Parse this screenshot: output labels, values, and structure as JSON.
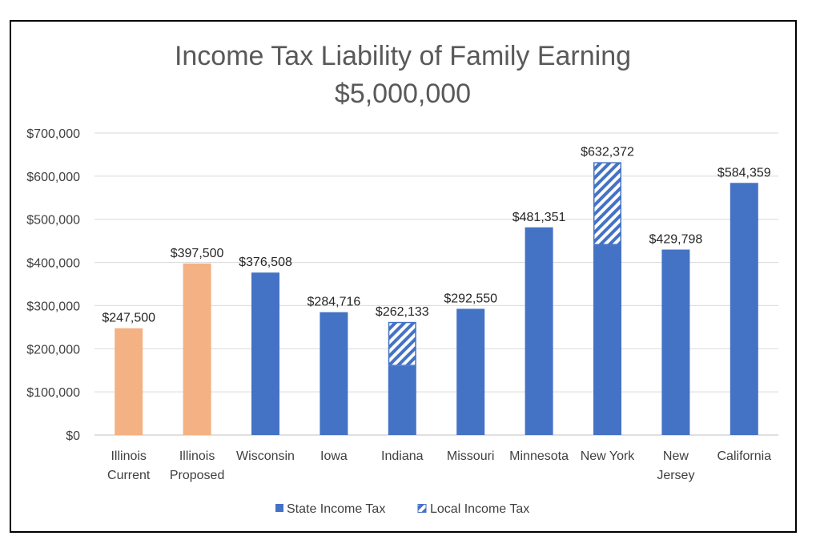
{
  "chart_data": {
    "type": "bar",
    "title_lines": [
      "Income Tax Liability of Family Earning",
      "$5,000,000"
    ],
    "categories": [
      [
        "Illinois",
        "Current"
      ],
      [
        "Illinois",
        "Proposed"
      ],
      [
        "Wisconsin"
      ],
      [
        "Iowa"
      ],
      [
        "Indiana"
      ],
      [
        "Missouri"
      ],
      [
        "Minnesota"
      ],
      [
        "New York"
      ],
      [
        "New",
        "Jersey"
      ],
      [
        "California"
      ]
    ],
    "series": [
      {
        "name": "State Income Tax",
        "values": [
          247500,
          397500,
          376508,
          284716,
          160000,
          292550,
          481351,
          440000,
          429798,
          584359
        ]
      },
      {
        "name": "Local Income Tax",
        "values": [
          0,
          0,
          0,
          0,
          102133,
          0,
          0,
          192372,
          0,
          0
        ]
      }
    ],
    "totals_labels": [
      "$247,500",
      "$397,500",
      "$376,508",
      "$284,716",
      "$262,133",
      "$292,550",
      "$481,351",
      "$632,372",
      "$429,798",
      "$584,359"
    ],
    "highlight_categories": [
      0,
      1
    ],
    "colors": {
      "state": "#4472c4",
      "illinois": "#f4b183",
      "local_hatch": "#4472c4",
      "grid": "#d9d9d9"
    },
    "ylim": [
      0,
      700000
    ],
    "yticks": [
      0,
      100000,
      200000,
      300000,
      400000,
      500000,
      600000,
      700000
    ],
    "ytick_labels": [
      "$0",
      "$100,000",
      "$200,000",
      "$300,000",
      "$400,000",
      "$500,000",
      "$600,000",
      "$700,000"
    ],
    "grid": true,
    "legend_position": "bottom",
    "stacked": true
  }
}
